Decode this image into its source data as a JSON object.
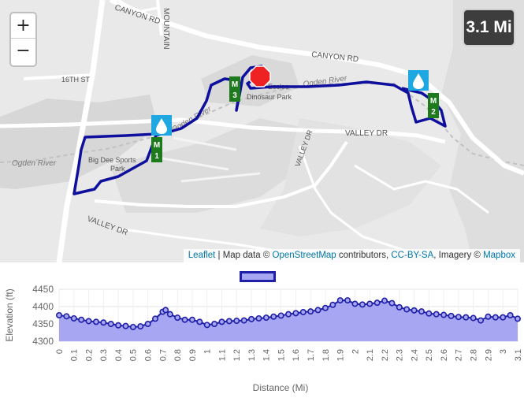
{
  "map": {
    "zoom_in_label": "+",
    "zoom_out_label": "−",
    "distance_badge": "3.1 Mi",
    "labels": {
      "canyon_rd_top": "CANYON RD",
      "mountain": "MOUNTAIN",
      "canyon_rd": "CANYON RD",
      "ogden_river_upper": "Ogden River",
      "sixteenth_st": "16TH ST",
      "eccles_park": "Eccles",
      "dinosaur_park": "Dinosaur Park",
      "ogden_river_mid": "Ogden River",
      "valley_dr_east": "VALLEY DR",
      "valley_dr_diag": "VALLEY DR",
      "big_dee_line1": "Big Dee Sports",
      "big_dee_line2": "Park",
      "ogden_river_left": "Ogden River",
      "valley_dr_west": "VALLEY DR"
    },
    "markers": {
      "m1": "M\n1",
      "m2": "M\n2",
      "m3": "M\n3",
      "water_icon": "water-drop-icon",
      "stop_icon": "stop-sign-icon"
    },
    "colors": {
      "route": "#0f0f9e",
      "mile_marker": "#1d7a1d",
      "water": "#1ea7e0",
      "stop": "#ee2222"
    },
    "attribution": {
      "leaflet": "Leaflet",
      "sep1": " | Map data © ",
      "osm": "OpenStreetMap",
      "sep2": " contributors, ",
      "ccbysa": "CC-BY-SA",
      "sep3": ", Imagery © ",
      "mapbox": "Mapbox"
    }
  },
  "chart_data": {
    "type": "area",
    "title": "",
    "xlabel": "Distance (Mi)",
    "ylabel": "Elevation (ft)",
    "ylim": [
      4300,
      4450
    ],
    "yticks": [
      4300,
      4350,
      4400,
      4450
    ],
    "xlim": [
      0,
      3.1
    ],
    "xticks": [
      "0",
      "0.1",
      "0.2",
      "0.3",
      "0.4",
      "0.5",
      "0.6",
      "0.7",
      "0.8",
      "0.9",
      "1",
      "1.1",
      "1.2",
      "1.3",
      "1.4",
      "1.5",
      "1.6",
      "1.7",
      "1.8",
      "1.9",
      "2",
      "2.1",
      "2.2",
      "2.3",
      "2.4",
      "2.5",
      "2.6",
      "2.7",
      "2.8",
      "2.9",
      "3",
      "3.1"
    ],
    "legend_position": "top-center",
    "colors": {
      "line": "#1f1fa8",
      "fill": "#a6a6f2"
    },
    "x": [
      0,
      0.05,
      0.1,
      0.15,
      0.2,
      0.25,
      0.3,
      0.35,
      0.4,
      0.45,
      0.5,
      0.55,
      0.6,
      0.65,
      0.7,
      0.72,
      0.75,
      0.8,
      0.85,
      0.9,
      0.95,
      1.0,
      1.05,
      1.1,
      1.15,
      1.2,
      1.25,
      1.3,
      1.35,
      1.4,
      1.45,
      1.5,
      1.55,
      1.6,
      1.65,
      1.7,
      1.75,
      1.8,
      1.85,
      1.9,
      1.95,
      2.0,
      2.05,
      2.1,
      2.15,
      2.2,
      2.25,
      2.3,
      2.35,
      2.4,
      2.45,
      2.5,
      2.55,
      2.6,
      2.65,
      2.7,
      2.75,
      2.8,
      2.85,
      2.9,
      2.95,
      3.0,
      3.05,
      3.1
    ],
    "y": [
      4375,
      4372,
      4366,
      4362,
      4358,
      4356,
      4354,
      4350,
      4346,
      4344,
      4341,
      4343,
      4350,
      4365,
      4385,
      4390,
      4378,
      4368,
      4362,
      4362,
      4356,
      4347,
      4350,
      4356,
      4358,
      4359,
      4360,
      4364,
      4366,
      4368,
      4371,
      4374,
      4378,
      4381,
      4384,
      4386,
      4390,
      4396,
      4405,
      4418,
      4418,
      4408,
      4406,
      4408,
      4411,
      4417,
      4410,
      4398,
      4392,
      4389,
      4386,
      4380,
      4378,
      4376,
      4373,
      4370,
      4369,
      4367,
      4360,
      4371,
      4369,
      4369,
      4375,
      4365
    ]
  }
}
